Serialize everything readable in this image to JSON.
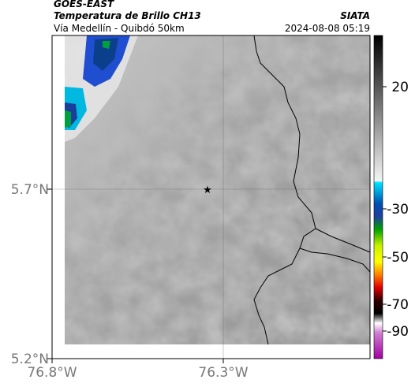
{
  "header": {
    "title": "GOES-EAST",
    "subtitle": "Temperatura de Brillo CH13",
    "source": "SIATA",
    "location": "Vía Medellín - Quibdó 50km",
    "timestamp": "2024-08-08 05:19"
  },
  "map": {
    "lat_labels": [
      "5.7°N",
      "5.2°N"
    ],
    "lon_labels": [
      "76.8°W",
      "76.3°W"
    ]
  },
  "colorbar": {
    "ticks": [
      20,
      -30,
      -50,
      -70,
      -90
    ]
  }
}
